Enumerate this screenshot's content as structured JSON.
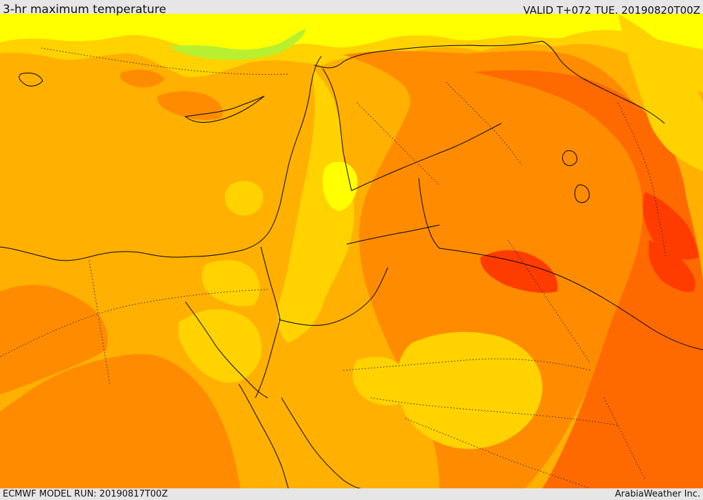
{
  "header": {
    "title": "3-hr maximum temperature",
    "valid": "VALID T+072 TUE. 20190820T00Z"
  },
  "footer": {
    "model_run": "ECMWF MODEL RUN: 20190817T00Z",
    "credit": "ArabiaWeather Inc."
  },
  "map": {
    "base_color": "#ffb000",
    "palette": [
      "#ffff00",
      "#b8f030",
      "#ffd200",
      "#ffb000",
      "#ff8c00",
      "#ff6a00",
      "#ff3c00"
    ],
    "line_color": "#000000"
  }
}
